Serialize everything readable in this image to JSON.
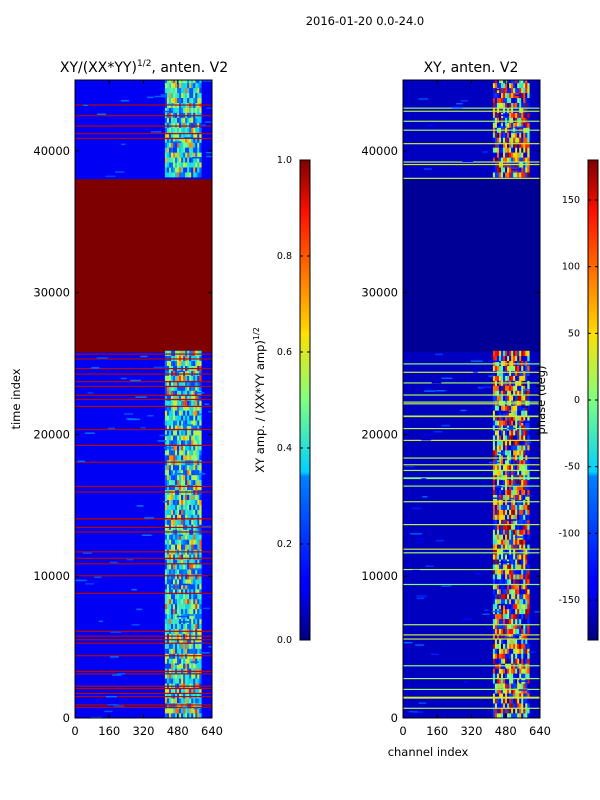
{
  "figure_title": "2016-01-20 0.0-24.0",
  "chart_data": [
    {
      "type": "heatmap",
      "title_main": "XY/(XX*YY)",
      "title_sup": "1/2",
      "title_tail": ", anten. V2",
      "xlabel": "",
      "ylabel": "time index",
      "xlim": [
        0,
        640
      ],
      "ylim": [
        0,
        45000
      ],
      "xticks": [
        0,
        160,
        320,
        480,
        640
      ],
      "yticks": [
        0,
        10000,
        20000,
        30000,
        40000
      ],
      "colorbar": {
        "range": [
          0.0,
          1.0
        ],
        "ticks": [
          "0.0",
          "0.2",
          "0.4",
          "0.6",
          "0.8",
          "1.0"
        ],
        "tick_values": [
          0.0,
          0.2,
          0.4,
          0.6,
          0.8,
          1.0
        ],
        "label_main": "XY amp. / (XX*YY amp)",
        "label_sup": "1/2"
      },
      "saturated_band_time_index": [
        25800,
        38000
      ],
      "active_channel_range": [
        420,
        590
      ],
      "background_level": 0.1
    },
    {
      "type": "heatmap",
      "title_main": "XY, anten. V2",
      "xlabel": "channel index",
      "ylabel": "",
      "xlim": [
        0,
        640
      ],
      "ylim": [
        0,
        45000
      ],
      "xticks": [
        0,
        160,
        320,
        480,
        640
      ],
      "yticks": [
        0,
        10000,
        20000,
        30000,
        40000
      ],
      "colorbar": {
        "range": [
          -180,
          180
        ],
        "ticks": [
          "-150",
          "-100",
          "-50",
          "0",
          "50",
          "100",
          "150"
        ],
        "tick_values": [
          -150,
          -100,
          -50,
          0,
          50,
          100,
          150
        ],
        "label_main": "phase (deg)"
      },
      "uniform_band_time_index": [
        25800,
        38000
      ],
      "active_channel_range": [
        420,
        590
      ],
      "background_level": -160
    }
  ]
}
